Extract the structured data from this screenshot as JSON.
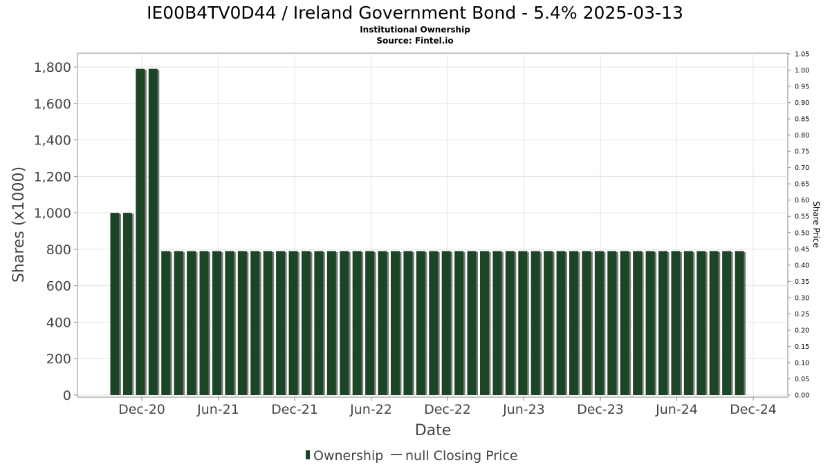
{
  "chart_data": {
    "type": "bar",
    "title": "IE00B4TV0D44 / Ireland Government Bond - 5.4% 2025-03-13",
    "subtitle": "Institutional Ownership",
    "source": "Source: Fintel.io",
    "xlabel": "Date",
    "ylabel": "Shares (x1000)",
    "y2label": "Share Price",
    "ylim": [
      0,
      1800
    ],
    "y2lim": [
      0.0,
      1.05
    ],
    "yticks": [
      "0",
      "200",
      "400",
      "600",
      "800",
      "1,000",
      "1,200",
      "1,400",
      "1,600",
      "1,800"
    ],
    "y2ticks": [
      "0.00",
      "0.05",
      "0.10",
      "0.15",
      "0.20",
      "0.25",
      "0.30",
      "0.35",
      "0.40",
      "0.45",
      "0.50",
      "0.55",
      "0.60",
      "0.65",
      "0.70",
      "0.75",
      "0.80",
      "0.85",
      "0.90",
      "0.95",
      "1.00",
      "1.05"
    ],
    "xticks": [
      "Dec-20",
      "Jun-21",
      "Dec-21",
      "Jun-22",
      "Dec-22",
      "Jun-23",
      "Dec-23",
      "Jun-24",
      "Dec-24"
    ],
    "grid": true,
    "legend_position": "bottom",
    "series": [
      {
        "name": "Ownership",
        "color": "#1c4526",
        "values": [
          1000,
          1000,
          1790,
          1790,
          790,
          790,
          790,
          790,
          790,
          790,
          790,
          790,
          790,
          790,
          790,
          790,
          790,
          790,
          790,
          790,
          790,
          790,
          790,
          790,
          790,
          790,
          790,
          790,
          790,
          790,
          790,
          790,
          790,
          790,
          790,
          790,
          790,
          790,
          790,
          790,
          790,
          790,
          790,
          790,
          790,
          790,
          790,
          790,
          790,
          790
        ]
      },
      {
        "name": "null Closing Price",
        "color": "#555555",
        "values": []
      }
    ]
  }
}
